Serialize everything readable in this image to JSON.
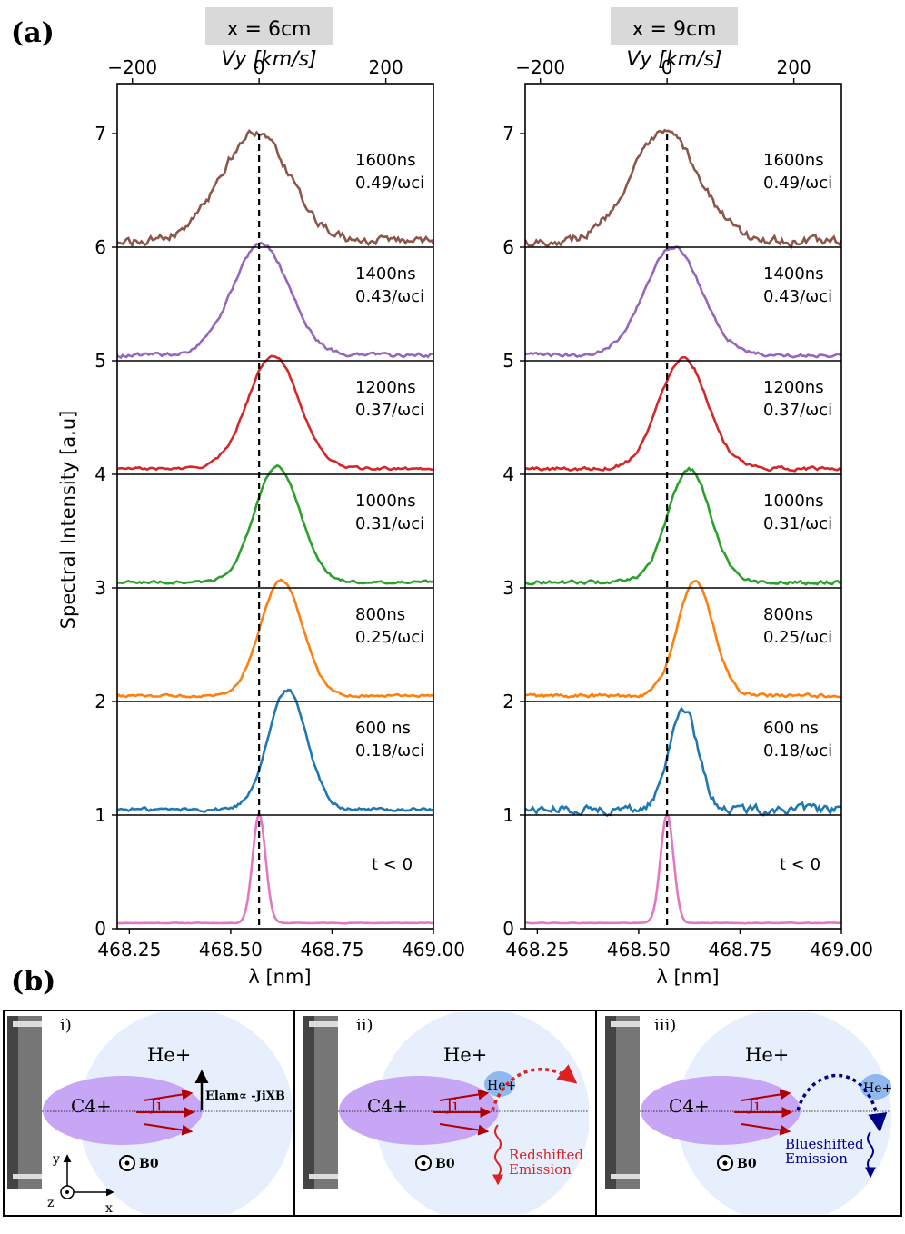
{
  "panel_a_label": "(a)",
  "panel_b_label": "(b)",
  "colors": {
    "t_neg": "#e377c2",
    "t600": "#1f77b4",
    "t800": "#ff7f0e",
    "t1000": "#2ca02c",
    "t1200": "#d62728",
    "t1400": "#9467bd",
    "t1600": "#8c564b",
    "header_bg": "#d9d9d9",
    "plasma": "#e6effb",
    "carbon": "#c7a6f5",
    "red_arrow": "#b00000",
    "blue_arrow": "#00008b",
    "red_text": "#e02020"
  },
  "chart_data": [
    {
      "type": "line",
      "title": "x = 6cm",
      "top_axis_label": "Vy [km/s]",
      "top_ticks": [
        "−200",
        "0",
        "200"
      ],
      "top_tick_values": [
        -200,
        0,
        200
      ],
      "xlabel": "λ [nm]",
      "ylabel": "Spectral Intensity [a.u]",
      "xlim": [
        468.22,
        469.0
      ],
      "ylim": [
        0,
        7.2
      ],
      "x_ticks": [
        "468.25",
        "468.50",
        "468.75",
        "469.00"
      ],
      "x_tick_values": [
        468.25,
        468.5,
        468.75,
        469.0
      ],
      "y_ticks": [
        "0",
        "1",
        "2",
        "3",
        "4",
        "5",
        "6",
        "7"
      ],
      "reference_line_x": 468.57,
      "series": [
        {
          "key": "t_neg",
          "time": "t < 0",
          "label2": "",
          "baseline": 0,
          "center": 468.57,
          "sigma": 0.016,
          "amplitude": 0.96,
          "noise": 0.005
        },
        {
          "key": "t600",
          "time": "600 ns",
          "label2": "0.18/ωci",
          "baseline": 1,
          "center": 468.64,
          "sigma": 0.048,
          "amplitude": 1.05,
          "noise": 0.03
        },
        {
          "key": "t800",
          "time": "800ns",
          "label2": "0.25/ωci",
          "baseline": 2,
          "center": 468.625,
          "sigma": 0.052,
          "amplitude": 1.02,
          "noise": 0.02
        },
        {
          "key": "t1000",
          "time": "1000ns",
          "label2": "0.31/ωci",
          "baseline": 3,
          "center": 468.615,
          "sigma": 0.056,
          "amplitude": 1.02,
          "noise": 0.02
        },
        {
          "key": "t1200",
          "time": "1200ns",
          "label2": "0.37/ωci",
          "baseline": 4,
          "center": 468.605,
          "sigma": 0.063,
          "amplitude": 1.0,
          "noise": 0.02
        },
        {
          "key": "t1400",
          "time": "1400ns",
          "label2": "0.43/ωci",
          "baseline": 5,
          "center": 468.575,
          "sigma": 0.07,
          "amplitude": 0.98,
          "noise": 0.03
        },
        {
          "key": "t1600",
          "time": "1600ns",
          "label2": "0.49/ωci",
          "baseline": 6,
          "center": 468.56,
          "sigma": 0.085,
          "amplitude": 0.95,
          "noise": 0.07
        }
      ]
    },
    {
      "type": "line",
      "title": "x = 9cm",
      "top_axis_label": "Vy [km/s]",
      "top_ticks": [
        "−200",
        "0",
        "200"
      ],
      "top_tick_values": [
        -200,
        0,
        200
      ],
      "xlabel": "λ [nm]",
      "ylabel": "",
      "xlim": [
        468.22,
        469.0
      ],
      "ylim": [
        0,
        7.2
      ],
      "x_ticks": [
        "468.25",
        "468.50",
        "468.75",
        "469.00"
      ],
      "x_tick_values": [
        468.25,
        468.5,
        468.75,
        469.0
      ],
      "y_ticks": [
        "0",
        "1",
        "2",
        "3",
        "4",
        "5",
        "6",
        "7"
      ],
      "reference_line_x": 468.57,
      "series": [
        {
          "key": "t_neg",
          "time": "t < 0",
          "label2": "",
          "baseline": 0,
          "center": 468.57,
          "sigma": 0.016,
          "amplitude": 0.96,
          "noise": 0.005
        },
        {
          "key": "t600",
          "time": "600 ns",
          "label2": "0.18/ωci",
          "baseline": 1,
          "center": 468.61,
          "sigma": 0.035,
          "amplitude": 0.9,
          "noise": 0.07
        },
        {
          "key": "t800",
          "time": "800ns",
          "label2": "0.25/ωci",
          "baseline": 2,
          "center": 468.64,
          "sigma": 0.045,
          "amplitude": 1.0,
          "noise": 0.03
        },
        {
          "key": "t1000",
          "time": "1000ns",
          "label2": "0.31/ωci",
          "baseline": 3,
          "center": 468.625,
          "sigma": 0.052,
          "amplitude": 1.0,
          "noise": 0.03
        },
        {
          "key": "t1200",
          "time": "1200ns",
          "label2": "0.37/ωci",
          "baseline": 4,
          "center": 468.61,
          "sigma": 0.06,
          "amplitude": 0.98,
          "noise": 0.03
        },
        {
          "key": "t1400",
          "time": "1400ns",
          "label2": "0.43/ωci",
          "baseline": 5,
          "center": 468.585,
          "sigma": 0.07,
          "amplitude": 0.95,
          "noise": 0.03
        },
        {
          "key": "t1600",
          "time": "1600ns",
          "label2": "0.49/ωci",
          "baseline": 6,
          "center": 468.565,
          "sigma": 0.085,
          "amplitude": 0.95,
          "noise": 0.07
        }
      ]
    }
  ],
  "diagram": {
    "panels": [
      {
        "roman": "i)",
        "he": "He+",
        "carbon": "C4+",
        "current": "Ji",
        "field": "Elam∝ -JiXB",
        "b0": "B0",
        "axis_y": "y",
        "axis_x": "x",
        "axis_z": "z"
      },
      {
        "roman": "ii)",
        "he": "He+",
        "carbon": "C4+",
        "current": "Ji",
        "ion": "He+",
        "emission1": "Redshifted",
        "emission2": "Emission",
        "b0": "B0"
      },
      {
        "roman": "iii)",
        "he": "He+",
        "carbon": "C4+",
        "current": "Ji",
        "ion": "He+",
        "emission1": "Blueshifted",
        "emission2": "Emission",
        "b0": "B0"
      }
    ]
  }
}
